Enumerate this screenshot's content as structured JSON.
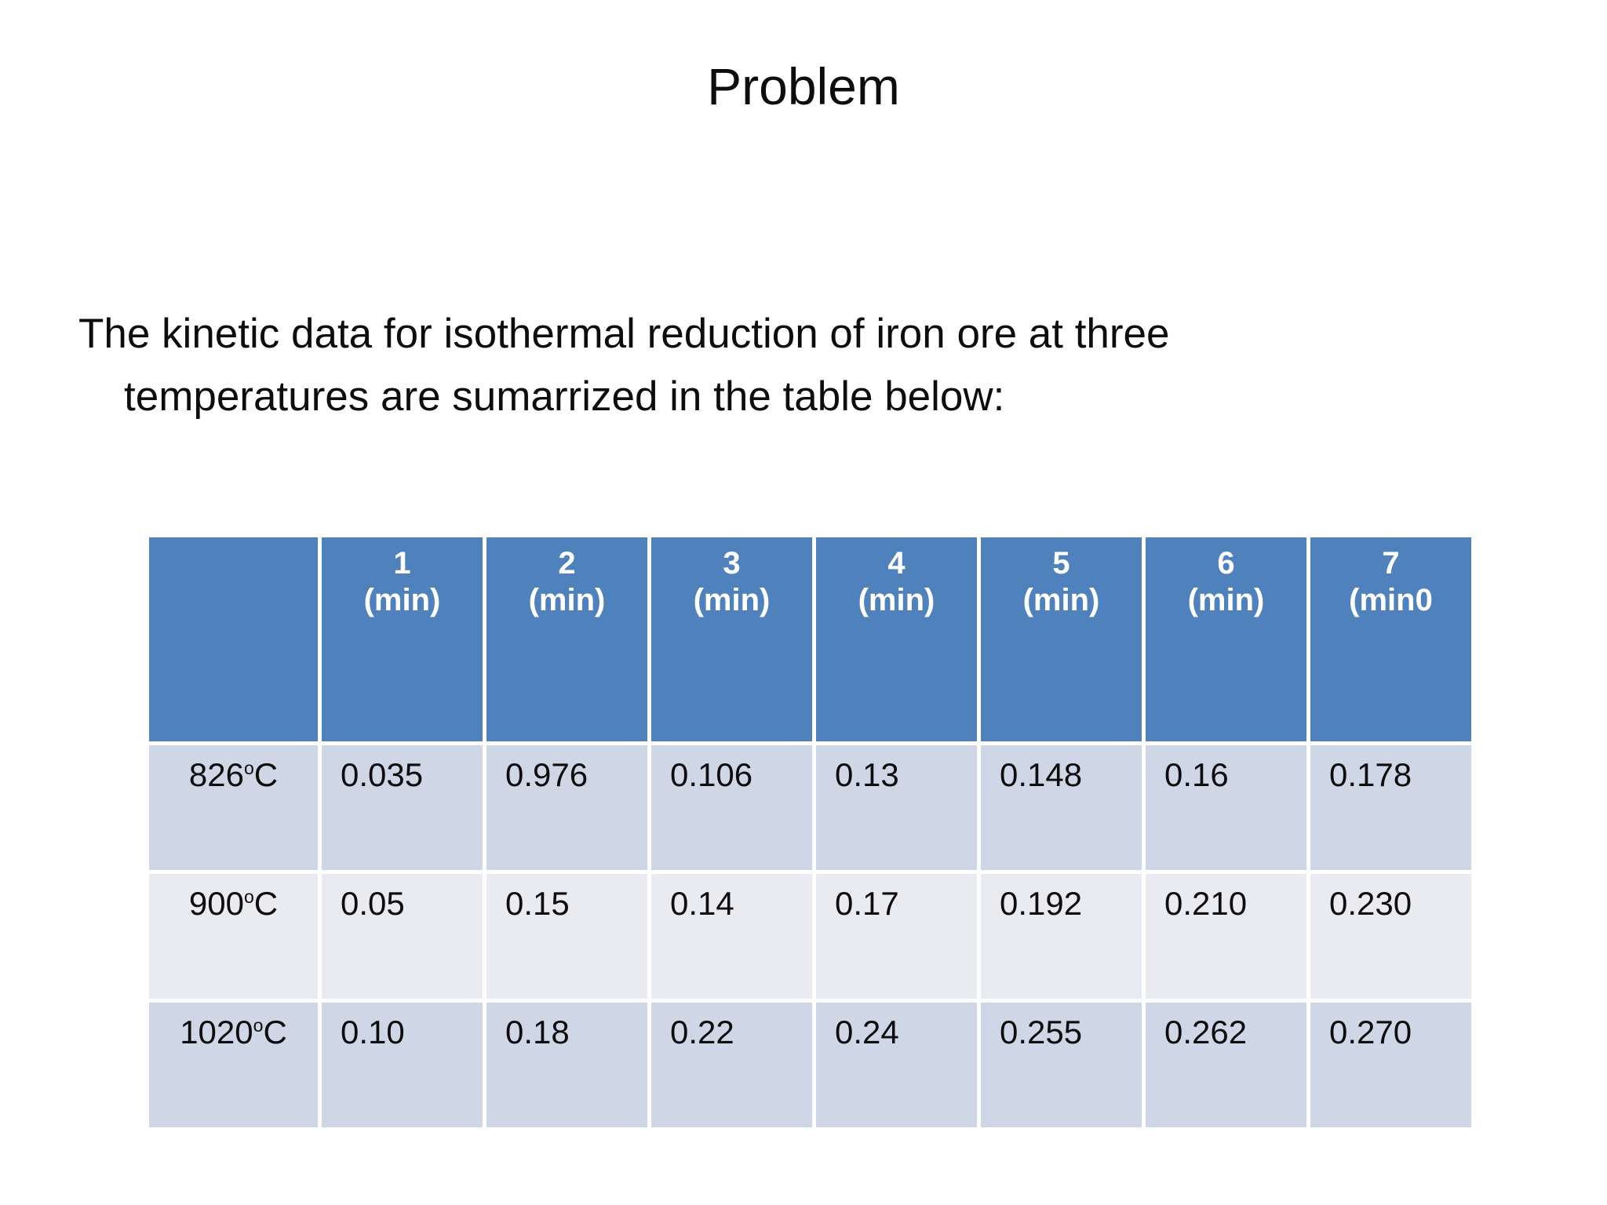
{
  "slide": {
    "title": "Problem",
    "body_lines": [
      "The kinetic data for isothermal reduction of iron ore at three",
      "temperatures are sumarrized in the table below:"
    ]
  },
  "table": {
    "corner_label": "",
    "columns": [
      {
        "num": "1",
        "unit": "(min)"
      },
      {
        "num": "2",
        "unit": "(min)"
      },
      {
        "num": "3",
        "unit": "(min)"
      },
      {
        "num": "4",
        "unit": "(min)"
      },
      {
        "num": "5",
        "unit": "(min)"
      },
      {
        "num": "6",
        "unit": "(min)"
      },
      {
        "num": "7",
        "unit": "(min0"
      }
    ],
    "rows": [
      {
        "temperature": "826",
        "degree_symbol": "o",
        "temperature_unit": "C",
        "values": [
          "0.035",
          "0.976",
          "0.106",
          "0.13",
          "0.148",
          "0.16",
          "0.178"
        ]
      },
      {
        "temperature": "900",
        "degree_symbol": "o",
        "temperature_unit": "C",
        "values": [
          "0.05",
          "0.15",
          "0.14",
          "0.17",
          "0.192",
          "0.210",
          "0.230"
        ]
      },
      {
        "temperature": "1020",
        "degree_symbol": "o",
        "temperature_unit": "C",
        "values": [
          "0.10",
          "0.18",
          "0.22",
          "0.24",
          "0.255",
          "0.262",
          "0.270"
        ]
      }
    ]
  },
  "colors": {
    "header_bg": "#4F81BD",
    "row_band_dark": "#CFD6E5",
    "row_band_light": "#E9EBF1",
    "header_text": "#FFFFFF",
    "body_text": "#0D0D0D",
    "background": "#FFFFFF"
  }
}
